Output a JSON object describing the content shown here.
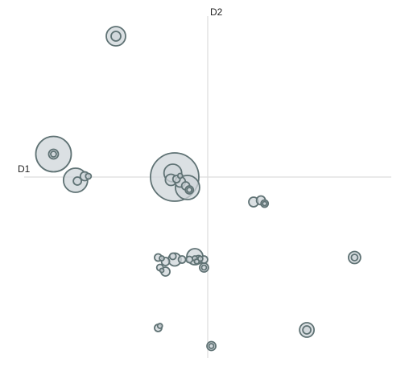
{
  "chart_data": {
    "type": "scatter",
    "title": "",
    "xlabel": "D1",
    "ylabel": "D2",
    "xlim": [
      -5.0,
      5.0
    ],
    "ylim": [
      -4.5,
      4.0
    ],
    "grid": false,
    "colors": {
      "fill": "#cfd6da",
      "stroke": "#5f7274",
      "axis": "#dcdcdc"
    },
    "points": [
      {
        "x": -2.5,
        "y": 3.5,
        "r": 1.2
      },
      {
        "x": -2.5,
        "y": 3.5,
        "r": 0.6
      },
      {
        "x": -4.2,
        "y": 0.57,
        "r": 2.2
      },
      {
        "x": -4.2,
        "y": 0.57,
        "r": 0.6
      },
      {
        "x": -4.2,
        "y": 0.57,
        "r": 0.35
      },
      {
        "x": -3.6,
        "y": -0.08,
        "r": 1.5
      },
      {
        "x": -3.55,
        "y": -0.1,
        "r": 0.5
      },
      {
        "x": -3.35,
        "y": 0.02,
        "r": 0.55
      },
      {
        "x": -3.25,
        "y": 0.02,
        "r": 0.35
      },
      {
        "x": -0.9,
        "y": 0.0,
        "r": 3.0
      },
      {
        "x": -0.95,
        "y": 0.1,
        "r": 1.1
      },
      {
        "x": -1.0,
        "y": -0.07,
        "r": 0.7
      },
      {
        "x": -0.85,
        "y": -0.05,
        "r": 0.45
      },
      {
        "x": -0.75,
        "y": 0.03,
        "r": 0.3
      },
      {
        "x": -0.75,
        "y": -0.12,
        "r": 0.65
      },
      {
        "x": -0.55,
        "y": -0.26,
        "r": 1.5
      },
      {
        "x": -0.6,
        "y": -0.22,
        "r": 0.5
      },
      {
        "x": -0.5,
        "y": -0.32,
        "r": 0.5
      },
      {
        "x": -0.5,
        "y": -0.32,
        "r": 0.3
      },
      {
        "x": 1.25,
        "y": -0.62,
        "r": 0.6
      },
      {
        "x": 1.45,
        "y": -0.58,
        "r": 0.55
      },
      {
        "x": 1.55,
        "y": -0.66,
        "r": 0.45
      },
      {
        "x": 1.55,
        "y": -0.66,
        "r": 0.25
      },
      {
        "x": -1.35,
        "y": -2.0,
        "r": 0.45
      },
      {
        "x": -1.25,
        "y": -2.02,
        "r": 0.3
      },
      {
        "x": -1.15,
        "y": -2.1,
        "r": 0.5
      },
      {
        "x": -1.15,
        "y": -2.35,
        "r": 0.55
      },
      {
        "x": -1.3,
        "y": -2.25,
        "r": 0.4
      },
      {
        "x": -1.25,
        "y": -2.32,
        "r": 0.25
      },
      {
        "x": -0.9,
        "y": -2.05,
        "r": 0.8
      },
      {
        "x": -0.95,
        "y": -1.97,
        "r": 0.4
      },
      {
        "x": -0.7,
        "y": -2.05,
        "r": 0.45
      },
      {
        "x": -0.5,
        "y": -2.05,
        "r": 0.4
      },
      {
        "x": -0.35,
        "y": -2.02,
        "r": 0.3
      },
      {
        "x": -0.25,
        "y": -2.05,
        "r": 0.5
      },
      {
        "x": -0.3,
        "y": -2.1,
        "r": 0.3
      },
      {
        "x": -0.35,
        "y": -1.98,
        "r": 1.0
      },
      {
        "x": -0.2,
        "y": -2.03,
        "r": 0.3
      },
      {
        "x": -0.1,
        "y": -2.05,
        "r": 0.45
      },
      {
        "x": -0.1,
        "y": -2.25,
        "r": 0.55
      },
      {
        "x": -0.1,
        "y": -2.25,
        "r": 0.3
      },
      {
        "x": 4.0,
        "y": -2.0,
        "r": 0.75
      },
      {
        "x": 4.0,
        "y": -2.0,
        "r": 0.4
      },
      {
        "x": -1.35,
        "y": -3.75,
        "r": 0.45
      },
      {
        "x": -1.3,
        "y": -3.7,
        "r": 0.3
      },
      {
        "x": 2.7,
        "y": -3.8,
        "r": 0.9
      },
      {
        "x": 2.7,
        "y": -3.8,
        "r": 0.5
      },
      {
        "x": 0.1,
        "y": -4.2,
        "r": 0.55
      },
      {
        "x": 0.1,
        "y": -4.2,
        "r": 0.3
      }
    ]
  }
}
